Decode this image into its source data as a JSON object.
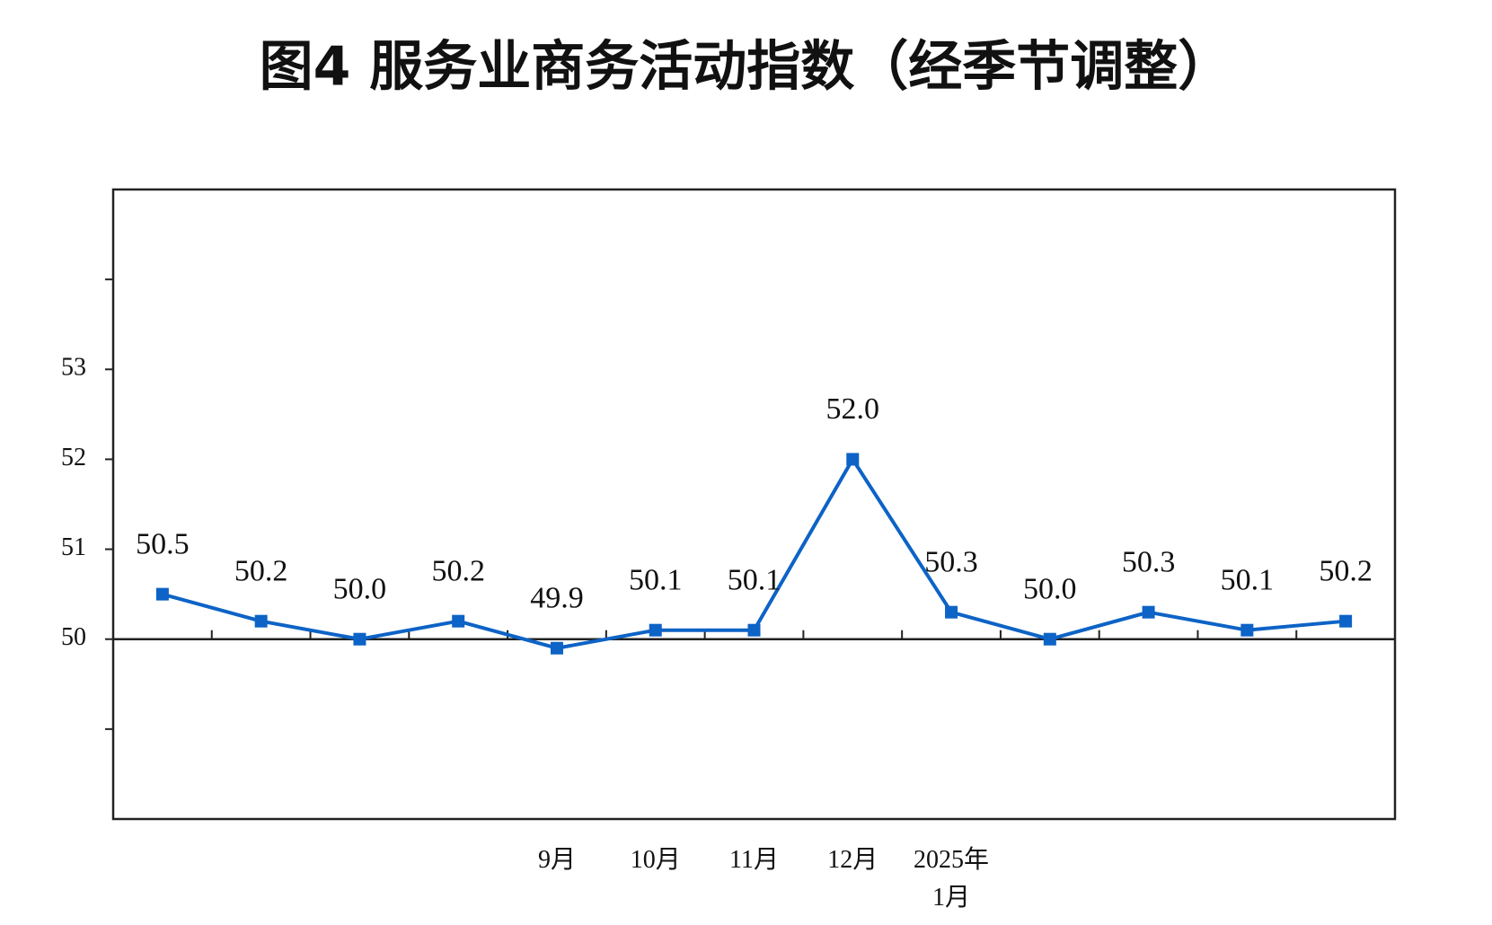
{
  "chart_data": {
    "type": "line",
    "title": "图4  服务业商务活动指数（经季节调整）",
    "categories": [
      null,
      null,
      null,
      null,
      "9月",
      "10月",
      "11月",
      "12月",
      "2025年\n1月",
      null,
      null,
      null,
      null
    ],
    "series": [
      {
        "color": "#0d63c6",
        "values": [
          50.5,
          50.2,
          50.0,
          50.2,
          49.9,
          50.1,
          50.1,
          52.0,
          50.3,
          50.0,
          50.3,
          50.1,
          50.2
        ],
        "value_labels": [
          "50.5",
          "50.2",
          "50.0",
          "50.2",
          "49.9",
          "50.1",
          "50.1",
          "52.0",
          "50.3",
          "50.0",
          "50.3",
          "50.1",
          "50.2"
        ]
      }
    ],
    "ylim": [
      48,
      55
    ],
    "yticks": [
      50,
      51,
      52,
      53
    ],
    "minor_yticks": [
      49,
      54
    ],
    "reference_line": 50
  }
}
